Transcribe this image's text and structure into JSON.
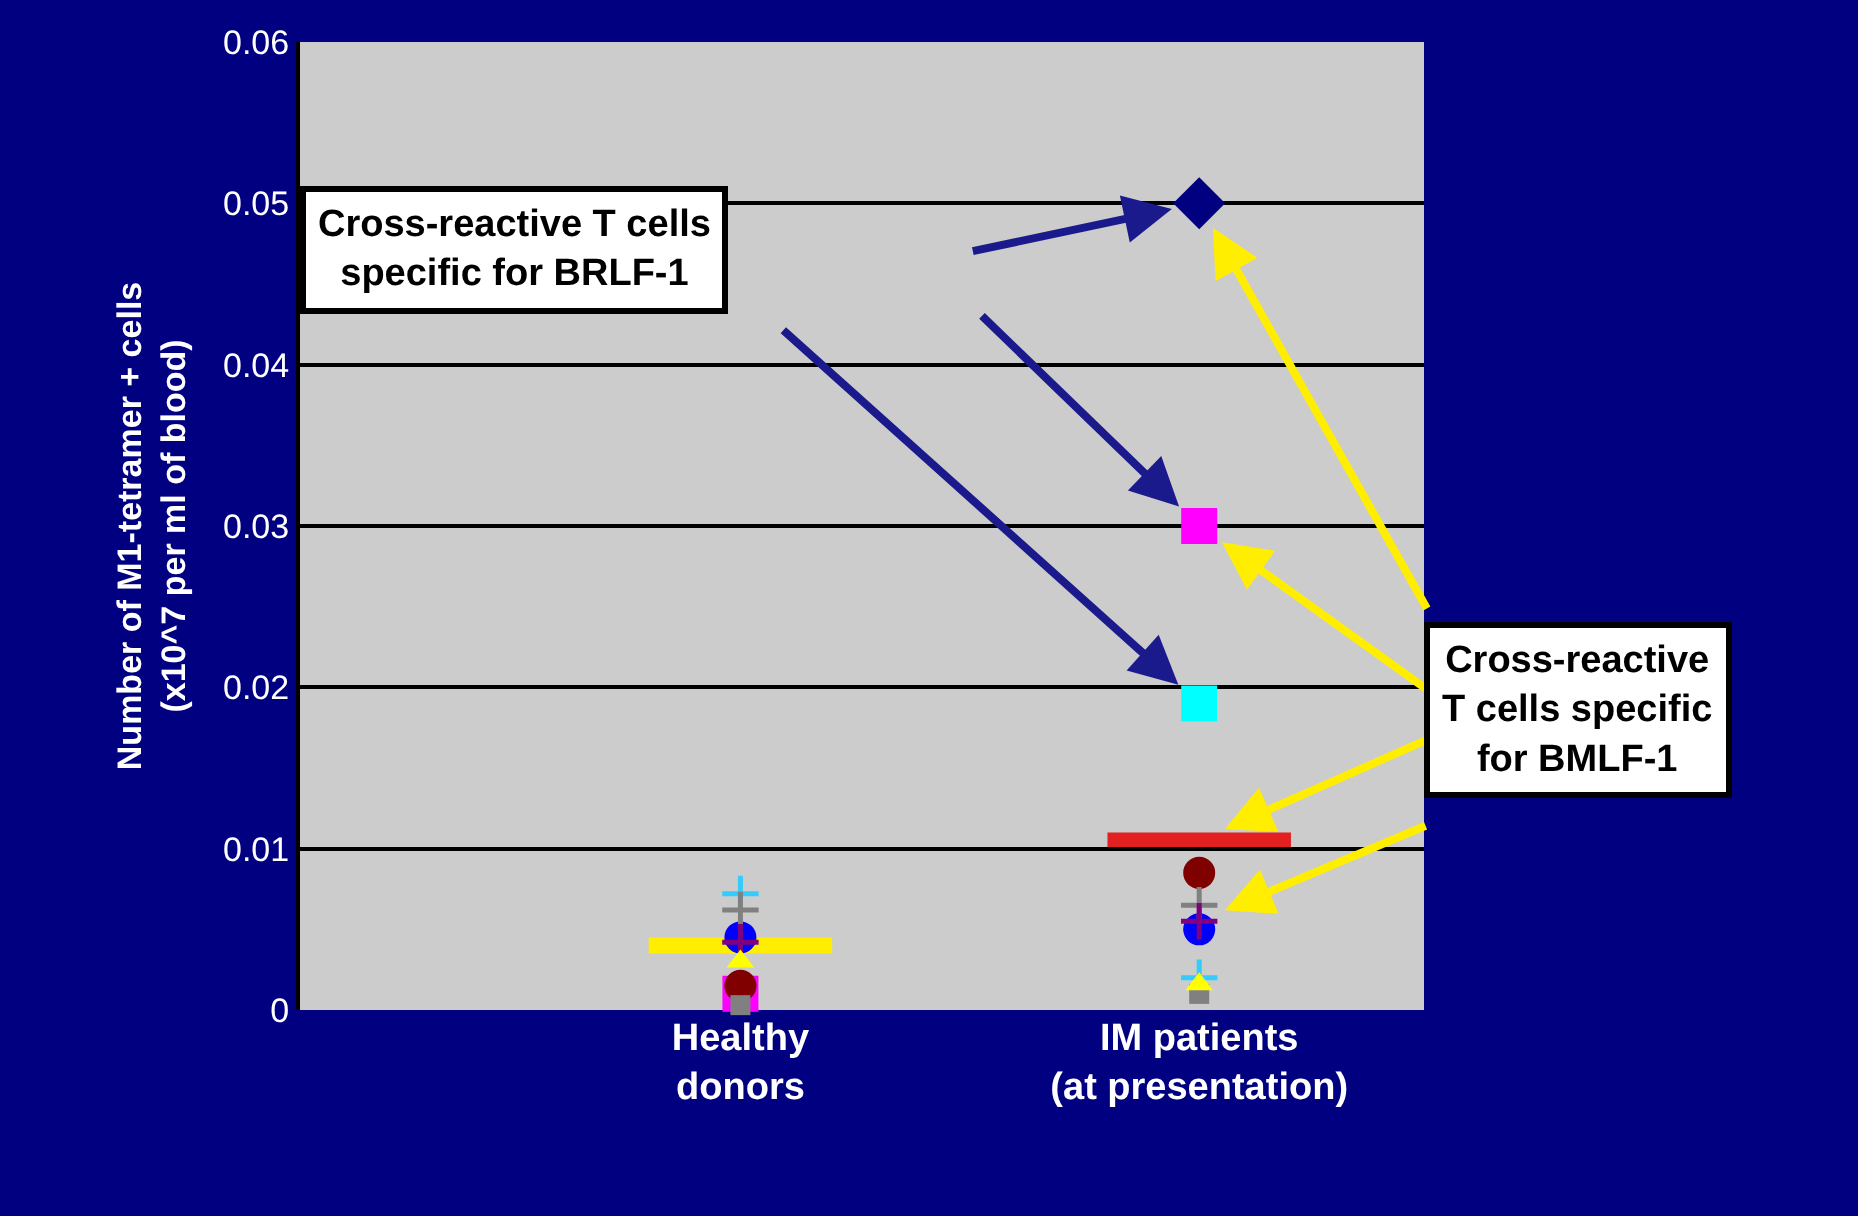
{
  "chart_data": {
    "type": "scatter",
    "ylabel": "Number of M1-tetramer + cells\n(x10^7 per ml of blood)",
    "categories": [
      "Healthy\ndonors",
      "IM patients\n(at presentation)"
    ],
    "ylim": [
      0,
      0.06
    ],
    "yticks": [
      0,
      0.01,
      0.02,
      0.03,
      0.04,
      0.05,
      0.06
    ],
    "grid": "y",
    "series": [
      {
        "color": "#000080",
        "marker": "diamond",
        "values": [
          null,
          0.05
        ]
      },
      {
        "color": "#ff00ff",
        "marker": "square",
        "values": [
          0.001,
          0.03
        ]
      },
      {
        "color": "#00ffff",
        "marker": "square",
        "values": [
          null,
          0.019
        ]
      },
      {
        "color": "#800000",
        "marker": "circle",
        "values": [
          0.0015,
          0.0085
        ]
      },
      {
        "color": "#0000ff",
        "marker": "circle",
        "values": [
          0.0045,
          0.005
        ]
      },
      {
        "color": "#33ccff",
        "marker": "cross",
        "values": [
          0.0072,
          0.002
        ]
      },
      {
        "color": "#808080",
        "marker": "cross",
        "values": [
          0.0062,
          0.0065
        ]
      },
      {
        "color": "#800080",
        "marker": "cross",
        "values": [
          0.0042,
          0.0055
        ]
      },
      {
        "color": "#808080",
        "marker": "square",
        "values": [
          0.0003,
          0.001
        ]
      },
      {
        "color": "#ffff00",
        "marker": "triangle",
        "values": [
          0.003,
          0.0016
        ]
      }
    ],
    "ref_lines": [
      {
        "axis": "y",
        "value": 0.004,
        "color": "#ffee00"
      },
      {
        "axis": "y",
        "value": 0.0105,
        "color": "#e32020"
      }
    ],
    "annotations": [
      "Cross-reactive T cells\nspecific for BRLF-1",
      {
        "text": "Cross-reactive\nT cells specific\nfor BMLF-1",
        "x": "IM patients\n(at presentation)",
        "y": 0.0105
      }
    ]
  }
}
